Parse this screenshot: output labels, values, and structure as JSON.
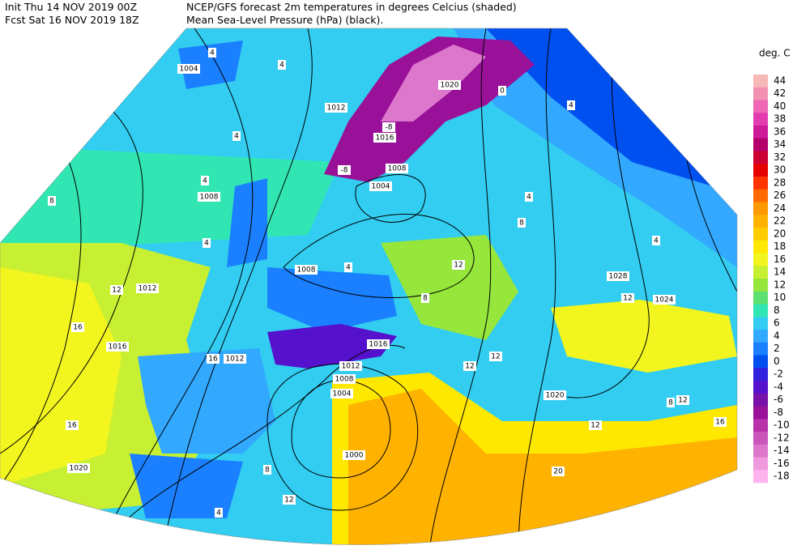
{
  "header": {
    "init": "Init  Thu 14 NOV 2019 00Z",
    "fcst": "Fcst Sat 16 NOV 2019 18Z",
    "line1": "NCEP/GFS forecast 2m temperatures in degrees Celcius (shaded)",
    "line2": "Mean Sea-Level Pressure (hPa) (black)."
  },
  "colorbar": {
    "unit": "deg. C",
    "levels": [
      {
        "value": 44,
        "color": "#f7b8b8"
      },
      {
        "value": 42,
        "color": "#f291b0"
      },
      {
        "value": 40,
        "color": "#ee66b4"
      },
      {
        "value": 38,
        "color": "#e23cb0"
      },
      {
        "value": 36,
        "color": "#cc1a99"
      },
      {
        "value": 34,
        "color": "#b3006b"
      },
      {
        "value": 32,
        "color": "#cc0033"
      },
      {
        "value": 30,
        "color": "#e60000"
      },
      {
        "value": 28,
        "color": "#ff3300"
      },
      {
        "value": 26,
        "color": "#ff6a00"
      },
      {
        "value": 24,
        "color": "#ff9900"
      },
      {
        "value": 22,
        "color": "#ffb300"
      },
      {
        "value": 20,
        "color": "#ffcc00"
      },
      {
        "value": 18,
        "color": "#ffe800"
      },
      {
        "value": 16,
        "color": "#f2f51e"
      },
      {
        "value": 14,
        "color": "#c8f032"
      },
      {
        "value": 12,
        "color": "#96e63c"
      },
      {
        "value": 10,
        "color": "#5ee070"
      },
      {
        "value": 8,
        "color": "#32e6b4"
      },
      {
        "value": 6,
        "color": "#32cdf0"
      },
      {
        "value": 4,
        "color": "#32a8ff"
      },
      {
        "value": 2,
        "color": "#1a80ff"
      },
      {
        "value": 0,
        "color": "#0050f0"
      },
      {
        "value": -2,
        "color": "#3322dd"
      },
      {
        "value": -4,
        "color": "#5511cc"
      },
      {
        "value": -6,
        "color": "#7711aa"
      },
      {
        "value": -8,
        "color": "#991199"
      },
      {
        "value": -10,
        "color": "#b833aa"
      },
      {
        "value": -12,
        "color": "#cc55bb"
      },
      {
        "value": -14,
        "color": "#dd77cc"
      },
      {
        "value": -16,
        "color": "#ee99dd"
      },
      {
        "value": -18,
        "color": "#ffb3ee"
      }
    ]
  },
  "isobar_labels": [
    1004,
    1012,
    1020,
    1016,
    1008,
    1004,
    1008,
    1008,
    1012,
    1016,
    1012,
    1012,
    1016,
    1008,
    1004,
    1000,
    1020,
    1028,
    1024,
    1020
  ],
  "temperature_labels": [
    4,
    4,
    4,
    8,
    4,
    4,
    12,
    16,
    16,
    12,
    4,
    8,
    12,
    12,
    16,
    8,
    12,
    4,
    20,
    12,
    8,
    12,
    16,
    4,
    8,
    4,
    12,
    4,
    -8,
    -8,
    0
  ]
}
